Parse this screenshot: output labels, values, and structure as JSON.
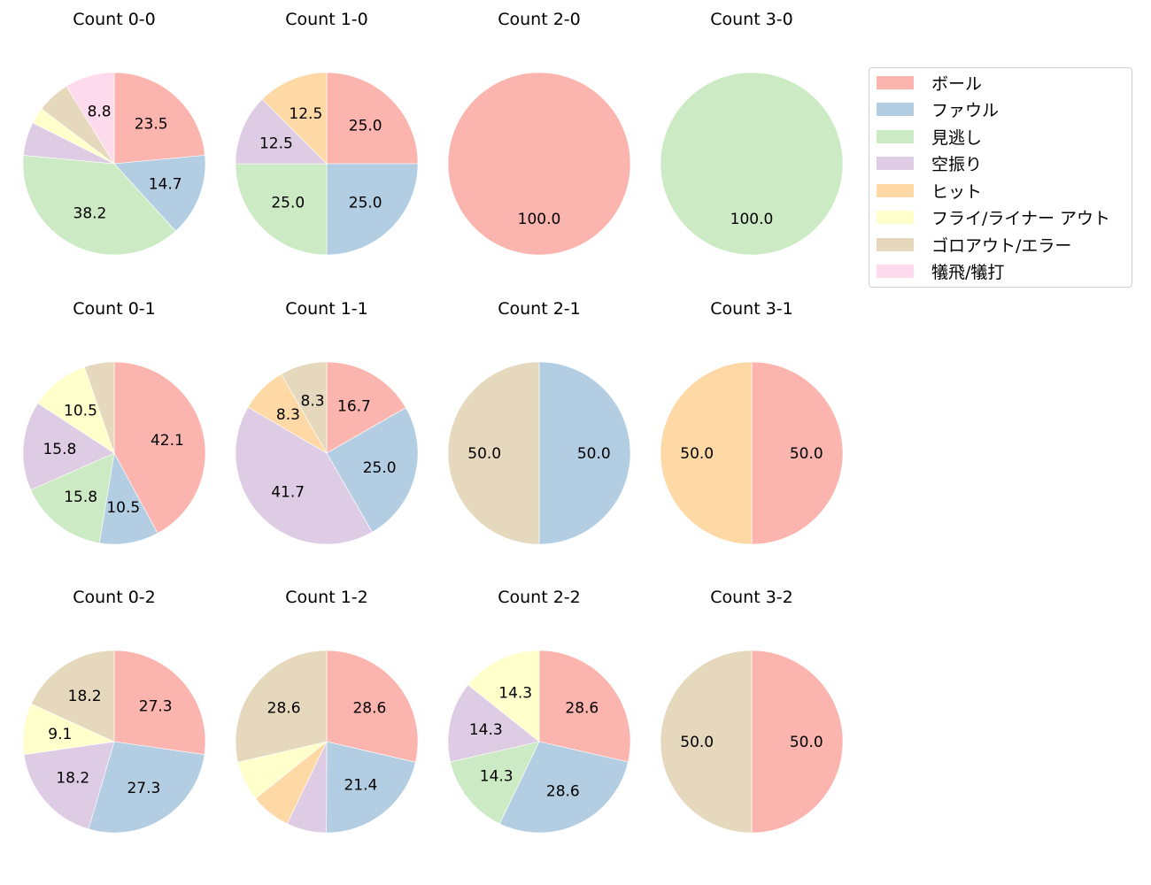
{
  "chart_data": {
    "type": "pie",
    "title": "",
    "start_angle": 90,
    "direction": "clockwise",
    "categories": [
      "ボール",
      "ファウル",
      "見逃し",
      "空振り",
      "ヒット",
      "フライ/ライナー アウト",
      "ゴロアウト/エラー",
      "犠飛/犠打"
    ],
    "colors": [
      "#fbb4ae",
      "#b3cde3",
      "#ccebc5",
      "#decbe4",
      "#fed9a6",
      "#ffffcc",
      "#e5d8bd",
      "#fddaec"
    ],
    "legend_position": "upper right",
    "charts": [
      {
        "title": "Count 0-0",
        "values": [
          23.5,
          14.7,
          38.2,
          5.9,
          0,
          2.9,
          5.9,
          8.8
        ],
        "labels_shown": [
          true,
          true,
          true,
          false,
          false,
          false,
          false,
          true
        ]
      },
      {
        "title": "Count 1-0",
        "values": [
          25.0,
          25.0,
          25.0,
          12.5,
          12.5,
          0,
          0,
          0
        ],
        "labels_shown": [
          true,
          true,
          true,
          true,
          true,
          false,
          false,
          false
        ]
      },
      {
        "title": "Count 2-0",
        "values": [
          100.0,
          0,
          0,
          0,
          0,
          0,
          0,
          0
        ],
        "labels_shown": [
          true,
          false,
          false,
          false,
          false,
          false,
          false,
          false
        ]
      },
      {
        "title": "Count 3-0",
        "values": [
          0,
          0,
          100.0,
          0,
          0,
          0,
          0,
          0
        ],
        "labels_shown": [
          false,
          false,
          true,
          false,
          false,
          false,
          false,
          false
        ]
      },
      {
        "title": "Count 0-1",
        "values": [
          42.1,
          10.5,
          15.8,
          15.8,
          0,
          10.5,
          5.3,
          0
        ],
        "labels_shown": [
          true,
          true,
          true,
          true,
          false,
          true,
          false,
          false
        ]
      },
      {
        "title": "Count 1-1",
        "values": [
          16.7,
          25.0,
          0,
          41.7,
          8.3,
          0,
          8.3,
          0
        ],
        "labels_shown": [
          true,
          true,
          false,
          true,
          true,
          false,
          true,
          false
        ]
      },
      {
        "title": "Count 2-1",
        "values": [
          0,
          50.0,
          0,
          0,
          0,
          0,
          50.0,
          0
        ],
        "labels_shown": [
          false,
          true,
          false,
          false,
          false,
          false,
          true,
          false
        ]
      },
      {
        "title": "Count 3-1",
        "values": [
          50.0,
          0,
          0,
          0,
          50.0,
          0,
          0,
          0
        ],
        "labels_shown": [
          true,
          false,
          false,
          false,
          true,
          false,
          false,
          false
        ]
      },
      {
        "title": "Count 0-2",
        "values": [
          27.3,
          27.3,
          0,
          18.2,
          0,
          9.1,
          18.2,
          0
        ],
        "labels_shown": [
          true,
          true,
          false,
          true,
          false,
          true,
          true,
          false
        ]
      },
      {
        "title": "Count 1-2",
        "values": [
          28.6,
          21.4,
          0,
          7.1,
          7.1,
          7.1,
          28.6,
          0
        ],
        "labels_shown": [
          true,
          true,
          false,
          false,
          false,
          false,
          true,
          false
        ]
      },
      {
        "title": "Count 2-2",
        "values": [
          28.6,
          28.6,
          14.3,
          14.3,
          0,
          14.3,
          0,
          0
        ],
        "labels_shown": [
          true,
          true,
          true,
          true,
          false,
          true,
          false,
          false
        ]
      },
      {
        "title": "Count 3-2",
        "values": [
          50.0,
          0,
          0,
          0,
          0,
          0,
          50.0,
          0
        ],
        "labels_shown": [
          true,
          false,
          false,
          false,
          false,
          false,
          true,
          false
        ]
      }
    ]
  },
  "legend": {
    "items": [
      {
        "label": "ボール",
        "color": "#fbb4ae"
      },
      {
        "label": "ファウル",
        "color": "#b3cde3"
      },
      {
        "label": "見逃し",
        "color": "#ccebc5"
      },
      {
        "label": "空振り",
        "color": "#decbe4"
      },
      {
        "label": "ヒット",
        "color": "#fed9a6"
      },
      {
        "label": "フライ/ライナー アウト",
        "color": "#ffffcc"
      },
      {
        "label": "ゴロアウト/エラー",
        "color": "#e5d8bd"
      },
      {
        "label": "犠飛/犠打",
        "color": "#fddaec"
      }
    ]
  }
}
